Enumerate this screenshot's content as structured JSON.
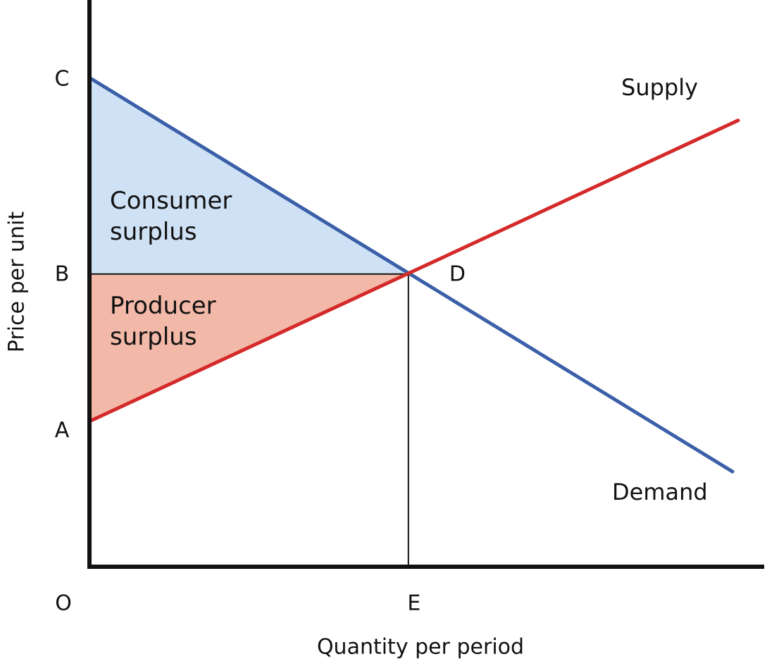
{
  "chart_data": {
    "type": "line",
    "title": "",
    "xlabel": "Quantity per period",
    "ylabel": "Price per unit",
    "xlim": [
      0,
      100
    ],
    "ylim": [
      0,
      100
    ],
    "grid": false,
    "y_points": [
      {
        "label": "C",
        "value": 100
      },
      {
        "label": "B",
        "value": 60
      },
      {
        "label": "A",
        "value": 30
      }
    ],
    "x_points": [
      {
        "label": "O",
        "value": 0
      },
      {
        "label": "E",
        "value": 49
      }
    ],
    "equilibrium": {
      "label": "D",
      "x": 49,
      "y": 60
    },
    "series": [
      {
        "name": "Demand",
        "color": "#3b5fa8",
        "x": [
          0,
          100
        ],
        "y": [
          100,
          19.5
        ]
      },
      {
        "name": "Supply",
        "color": "#d42a2a",
        "x": [
          0,
          100
        ],
        "y": [
          30,
          91.5
        ]
      }
    ],
    "regions": [
      {
        "name": "Consumer surplus",
        "line1": "Consumer",
        "line2": "surplus",
        "color": "#cfe2f5"
      },
      {
        "name": "Producer surplus",
        "line1": "Producer",
        "line2": "surplus",
        "color": "#f2b8a8"
      }
    ]
  }
}
